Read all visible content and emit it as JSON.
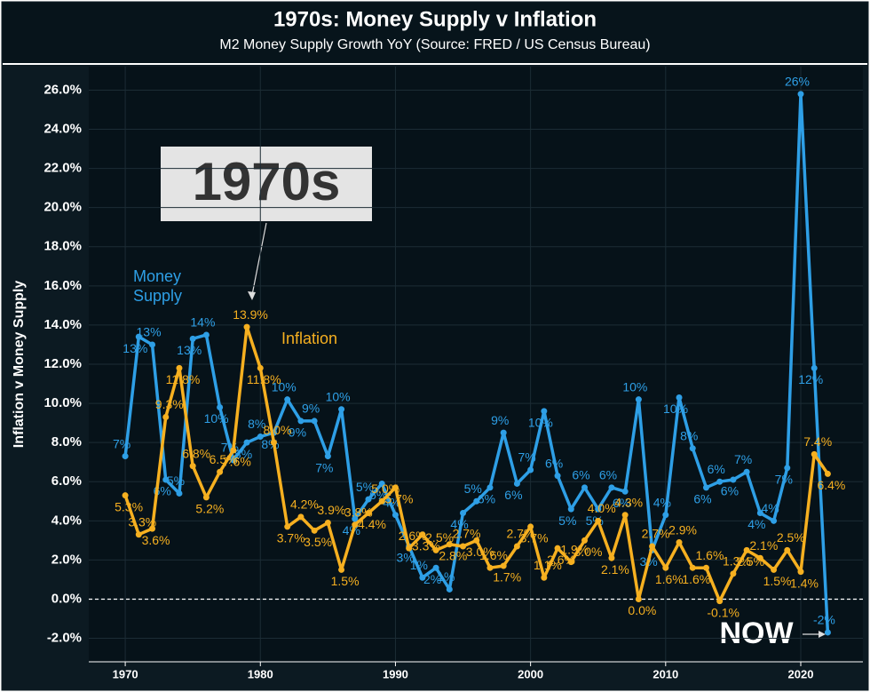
{
  "chart_data": {
    "type": "line",
    "title": "1970s: Money Supply v Inflation",
    "subtitle": "M2 Money Supply Growth YoY  (Source: FRED / US Census Bureau)",
    "y_label": "Inflation v Money Supply",
    "x": [
      1970,
      1971,
      1972,
      1973,
      1974,
      1975,
      1976,
      1977,
      1978,
      1979,
      1980,
      1981,
      1982,
      1983,
      1984,
      1985,
      1986,
      1987,
      1988,
      1989,
      1990,
      1991,
      1992,
      1993,
      1994,
      1995,
      1996,
      1997,
      1998,
      1999,
      2000,
      2001,
      2002,
      2003,
      2004,
      2005,
      2006,
      2007,
      2008,
      2009,
      2010,
      2011,
      2012,
      2013,
      2014,
      2015,
      2016,
      2017,
      2018,
      2019,
      2020,
      2021,
      2022
    ],
    "series": [
      {
        "name": "Money Supply",
        "color": "#2e9fe6",
        "values": [
          7.3,
          13.4,
          13.0,
          6.1,
          5.4,
          13.3,
          13.5,
          9.8,
          7.1,
          8.0,
          8.3,
          8.5,
          10.2,
          9.1,
          9.1,
          7.3,
          9.7,
          4.1,
          5.1,
          5.9,
          4.3,
          2.7,
          1.1,
          1.6,
          0.5,
          4.4,
          5.0,
          5.7,
          8.5,
          5.9,
          6.6,
          9.6,
          6.3,
          4.6,
          5.7,
          4.6,
          5.7,
          5.5,
          10.2,
          2.5,
          4.3,
          10.3,
          7.7,
          5.7,
          6.0,
          6.1,
          6.5,
          4.4,
          4.0,
          6.7,
          25.8,
          11.8,
          -1.7
        ],
        "value_labels": [
          "7%",
          "13%",
          "13%",
          "6%",
          "5%",
          "13%",
          "14%",
          "10%",
          "7%",
          "8%",
          "8%",
          "8%",
          "10%",
          "9%",
          "9%",
          "7%",
          "10%",
          "4%",
          "5%",
          "6%",
          "4%",
          "3%",
          "1%",
          "2%",
          "1%",
          "4%",
          "5%",
          "6%",
          "9%",
          "6%",
          "7%",
          "10%",
          "6%",
          "5%",
          "6%",
          "5%",
          "6%",
          "6%",
          "10%",
          "3%",
          "4%",
          "10%",
          "8%",
          "6%",
          "6%",
          "6%",
          "7%",
          "4%",
          "4%",
          "7%",
          "26%",
          "12%",
          "-2%"
        ]
      },
      {
        "name": "Inflation",
        "color": "#f6b020",
        "values": [
          5.3,
          3.3,
          3.6,
          9.3,
          11.8,
          6.8,
          5.2,
          6.5,
          7.6,
          13.9,
          11.8,
          8.0,
          3.7,
          4.2,
          3.5,
          3.9,
          1.5,
          3.8,
          4.4,
          5.0,
          5.7,
          2.6,
          3.3,
          2.5,
          2.8,
          2.7,
          3.0,
          1.6,
          1.7,
          2.7,
          3.7,
          1.1,
          2.6,
          1.9,
          3.0,
          4.0,
          2.1,
          4.3,
          0.0,
          2.7,
          1.6,
          2.9,
          1.6,
          1.6,
          -0.1,
          1.3,
          2.5,
          2.1,
          1.5,
          2.5,
          1.4,
          7.4,
          6.4
        ],
        "value_labels": [
          "5.3%",
          "3.3%",
          "3.6%",
          "9.3%",
          "11.8%",
          "6.8%",
          "5.2%",
          "6.5%",
          "7.6%",
          "13.9%",
          "11.8%",
          "8.0%",
          "3.7%",
          "4.2%",
          "3.5%",
          "3.9%",
          "1.5%",
          "3.8%",
          "4.4%",
          "5.0%",
          "5.7%",
          "2.6%",
          "3.3%",
          "2.5%",
          "2.8%",
          "2.7%",
          "3.0%",
          "1.6%",
          "1.7%",
          "2.7%",
          "3.7%",
          "1.1%",
          "2.6%",
          "1.9%",
          "3.0%",
          "4.0%",
          "2.1%",
          "4.3%",
          "0.0%",
          "2.7%",
          "1.6%",
          "2.9%",
          "1.6%",
          "1.6%",
          "-0.1%",
          "1.3%",
          "2.5%",
          "2.1%",
          "1.5%",
          "2.5%",
          "1.4%",
          "7.4%",
          "6.4%"
        ]
      }
    ],
    "xlim": [
      1967.3,
      2024.6
    ],
    "xticks": [
      1970,
      1980,
      1990,
      2000,
      2010,
      2020
    ],
    "ylim": [
      -3.2,
      27.2
    ],
    "yticks": [
      {
        "value": -2,
        "label": "-2.0%"
      },
      {
        "value": 0,
        "label": "0.0%"
      },
      {
        "value": 2,
        "label": "2.0%"
      },
      {
        "value": 4,
        "label": "4.0%"
      },
      {
        "value": 6,
        "label": "6.0%"
      },
      {
        "value": 8,
        "label": "8.0%"
      },
      {
        "value": 10,
        "label": "10.0%"
      },
      {
        "value": 12,
        "label": "12.0%"
      },
      {
        "value": 14,
        "label": "14.0%"
      },
      {
        "value": 16,
        "label": "16.0%"
      },
      {
        "value": 18,
        "label": "18.0%"
      },
      {
        "value": 20,
        "label": "20.0%"
      },
      {
        "value": 22,
        "label": "22.0%"
      },
      {
        "value": 24,
        "label": "24.0%"
      },
      {
        "value": 26,
        "label": "26.0%"
      }
    ],
    "grid": true,
    "annotations": [
      {
        "text": "1970s"
      },
      {
        "text": "NOW"
      }
    ]
  }
}
